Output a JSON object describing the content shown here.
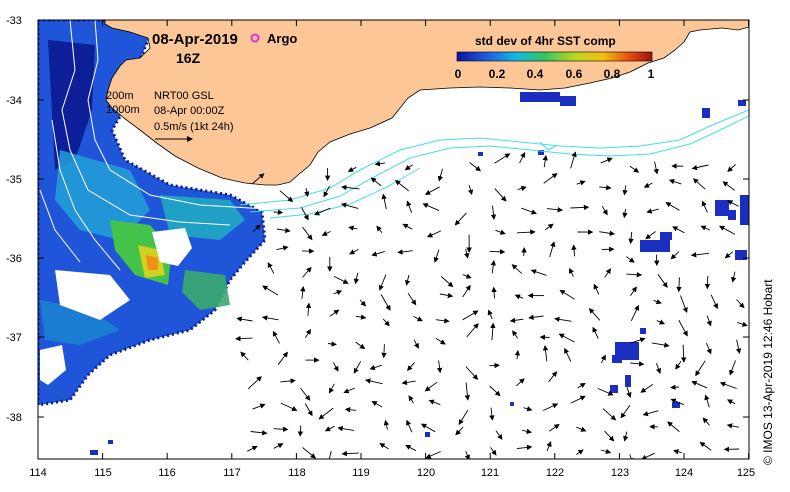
{
  "map": {
    "date": "08-Apr-2019",
    "hour": "16Z",
    "argo_label": "Argo",
    "colorbar": {
      "title": "std dev of 4hr SST comp",
      "ticks": [
        "0",
        "0.2",
        "0.4",
        "0.6",
        "0.8",
        "1"
      ]
    },
    "contours": {
      "depth1": "200m",
      "depth2": "1000m"
    },
    "vectors": {
      "source": "NRT00 GSL",
      "time": "08-Apr 00:00Z",
      "scale": "0.5m/s (1kt 24h)"
    },
    "lat_ticks": [
      "-33",
      "-34",
      "-35",
      "-36",
      "-37",
      "-38"
    ],
    "lon_ticks": [
      "114",
      "115",
      "116",
      "117",
      "118",
      "119",
      "120",
      "121",
      "122",
      "123",
      "124",
      "125"
    ],
    "credit": "© IMOS 13-Apr-2019 12:46 Hobart",
    "colors": {
      "land": "#fcc697",
      "coast": "#000000",
      "isobath": "#ffffff",
      "front": "#44dde8",
      "argo": "#e020e0"
    }
  }
}
